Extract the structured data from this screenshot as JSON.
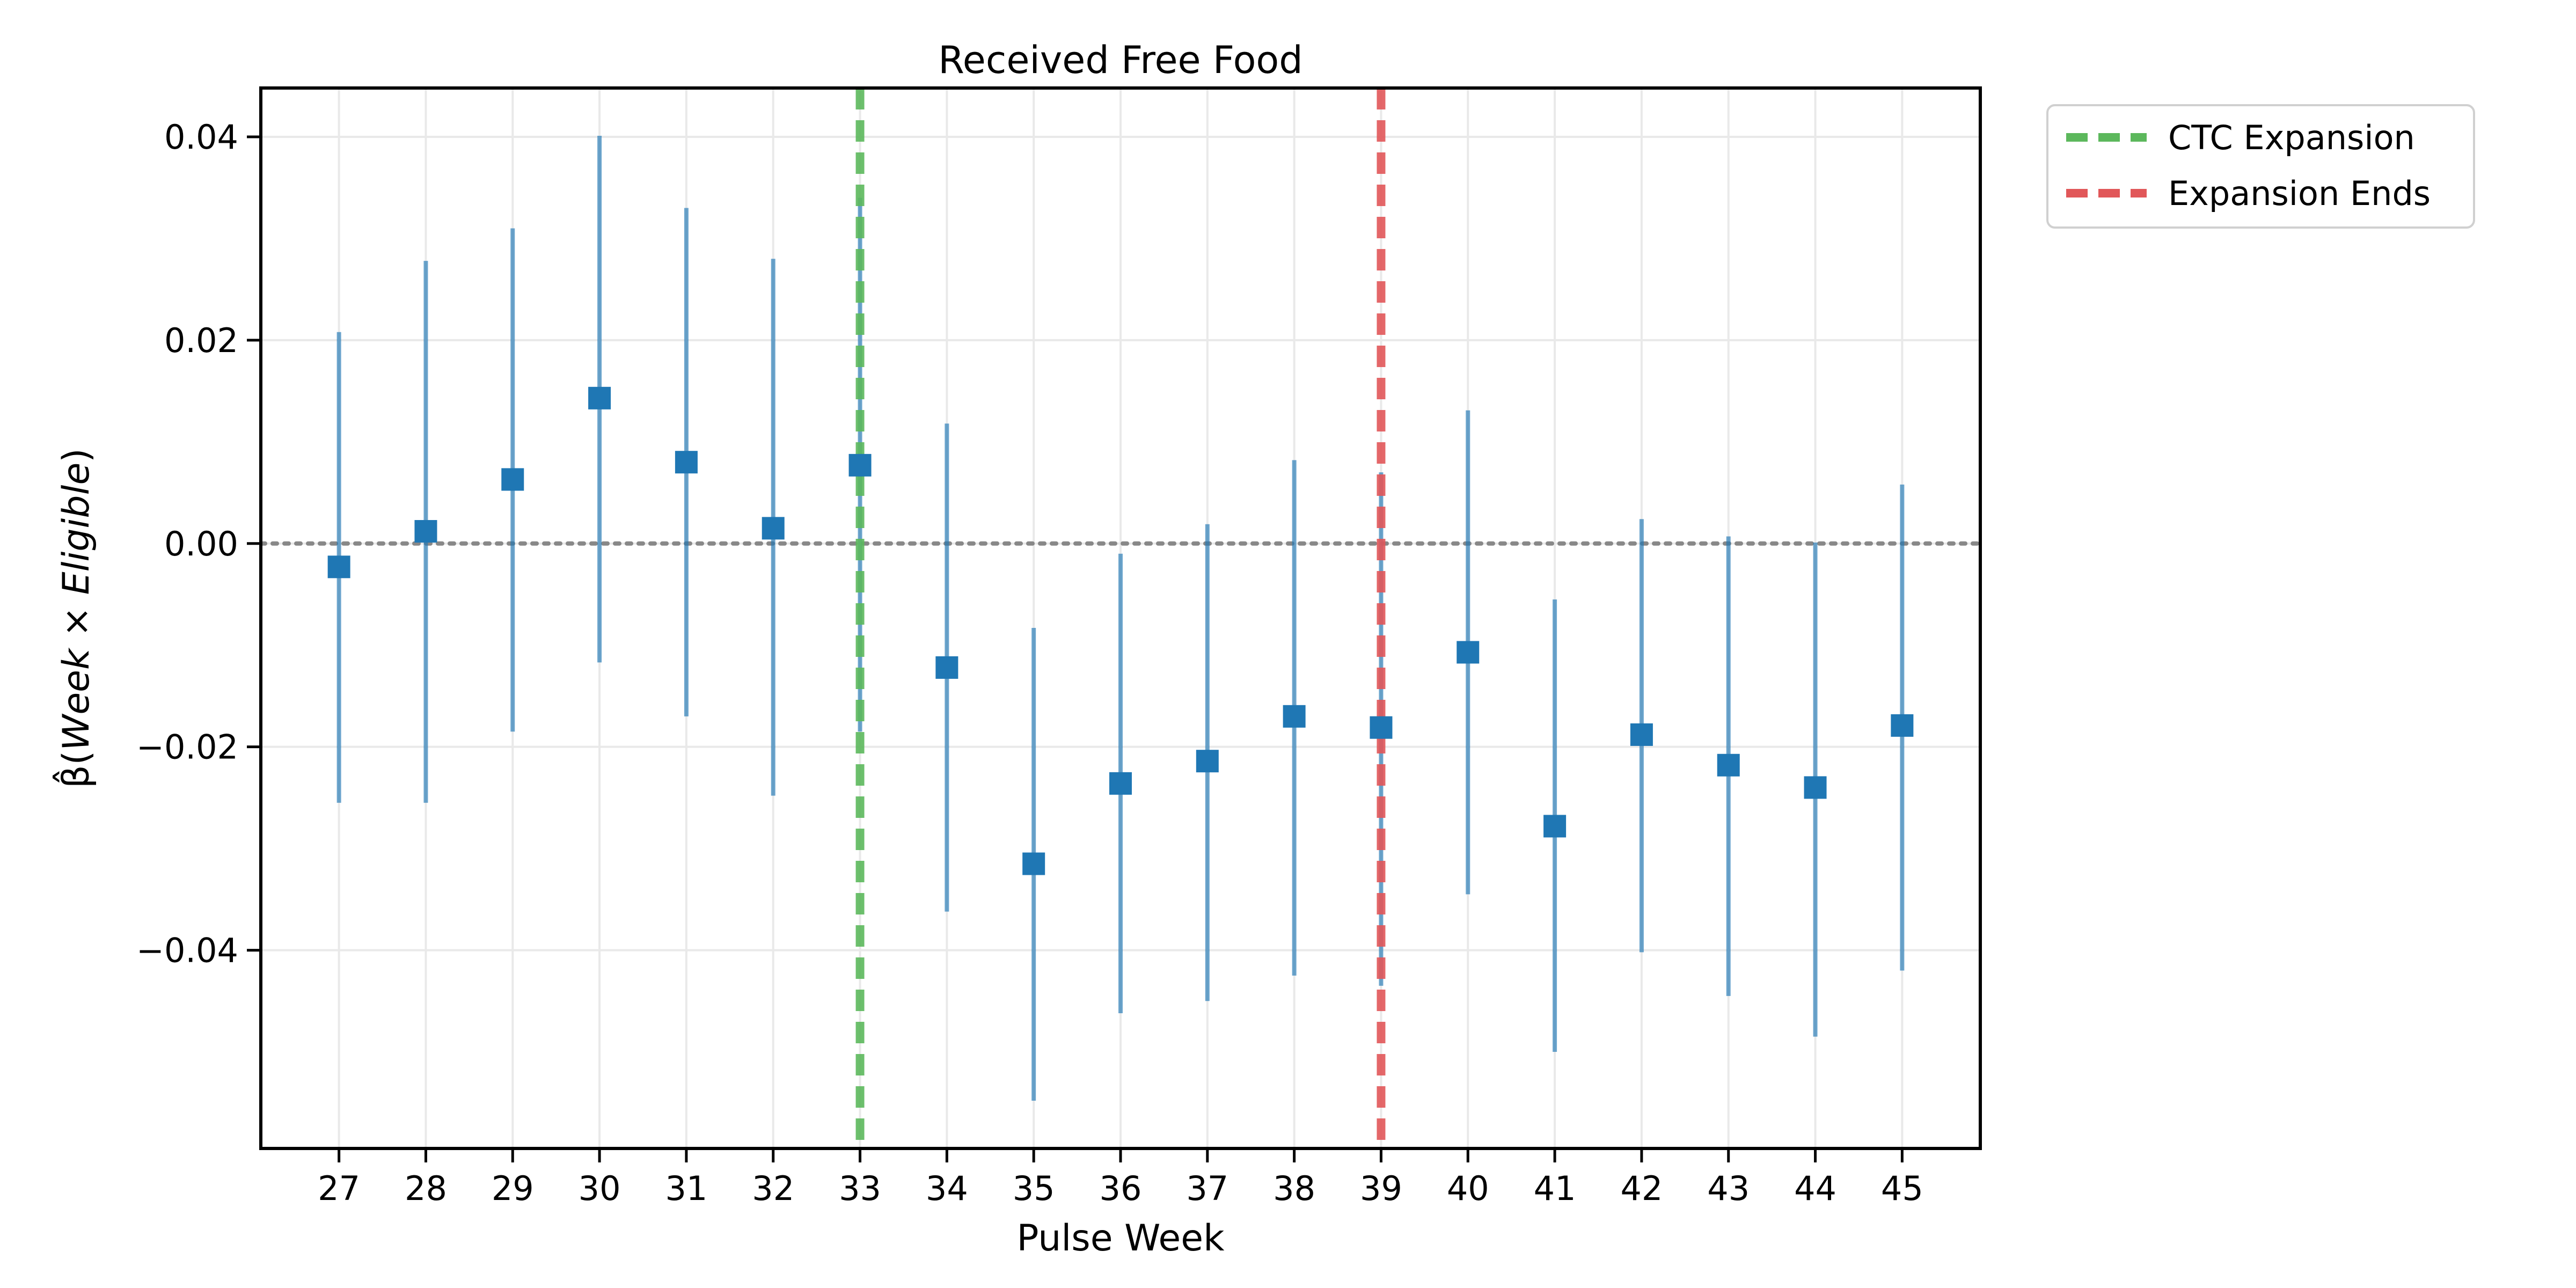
{
  "chart_data": {
    "type": "scatter",
    "title": "Received Free Food",
    "xlabel": "Pulse Week",
    "ylabel_parts": {
      "beta": "β̂",
      "open": "(",
      "week": "Week",
      "times": " × ",
      "eligible": "Eligible",
      "close": ")"
    },
    "x": [
      27,
      28,
      29,
      30,
      31,
      32,
      33,
      34,
      35,
      36,
      37,
      38,
      39,
      40,
      41,
      42,
      43,
      44,
      45
    ],
    "x_tick_labels": [
      "27",
      "28",
      "29",
      "30",
      "31",
      "32",
      "33",
      "34",
      "35",
      "36",
      "37",
      "38",
      "39",
      "40",
      "41",
      "42",
      "43",
      "44",
      "45"
    ],
    "series": [
      {
        "estimate": [
          -0.0023,
          0.0012,
          0.0063,
          0.0143,
          0.008,
          0.0015,
          0.0077,
          -0.0122,
          -0.0315,
          -0.0236,
          -0.0214,
          -0.017,
          -0.0181,
          -0.0107,
          -0.0278,
          -0.0188,
          -0.0218,
          -0.024,
          -0.0179
        ],
        "ci_low": [
          -0.0255,
          -0.0255,
          -0.0185,
          -0.0117,
          -0.017,
          -0.0248,
          -0.0185,
          -0.0362,
          -0.0548,
          -0.0462,
          -0.045,
          -0.0425,
          -0.0435,
          -0.0345,
          -0.05,
          -0.0402,
          -0.0445,
          -0.0485,
          -0.042
        ],
        "ci_high": [
          0.0208,
          0.0278,
          0.031,
          0.0401,
          0.033,
          0.028,
          0.034,
          0.0118,
          -0.0083,
          -0.001,
          0.0019,
          0.0082,
          0.007,
          0.0131,
          -0.0055,
          0.0024,
          0.0007,
          0.0001,
          0.0058
        ],
        "color": "#1f77b4"
      }
    ],
    "y_ticks": [
      0.04,
      0.02,
      0.0,
      -0.02,
      -0.04
    ],
    "y_tick_labels": [
      "0.04",
      "0.02",
      "0.00",
      "−0.02",
      "−0.04"
    ],
    "xlim": [
      26.1,
      45.9
    ],
    "ylim": [
      -0.0595,
      0.0448
    ],
    "grid": true,
    "reference_line": {
      "y": 0.0,
      "style": "dotted",
      "color": "#888888"
    },
    "vertical_lines": [
      {
        "x": 33,
        "label": "CTC Expansion",
        "color": "#5cb85c",
        "style": "dashed"
      },
      {
        "x": 39,
        "label": "Expansion Ends",
        "color": "#e15759",
        "style": "dashed"
      }
    ],
    "legend": {
      "placement": "outside-top-right",
      "entries": [
        "CTC Expansion",
        "Expansion Ends"
      ]
    }
  }
}
